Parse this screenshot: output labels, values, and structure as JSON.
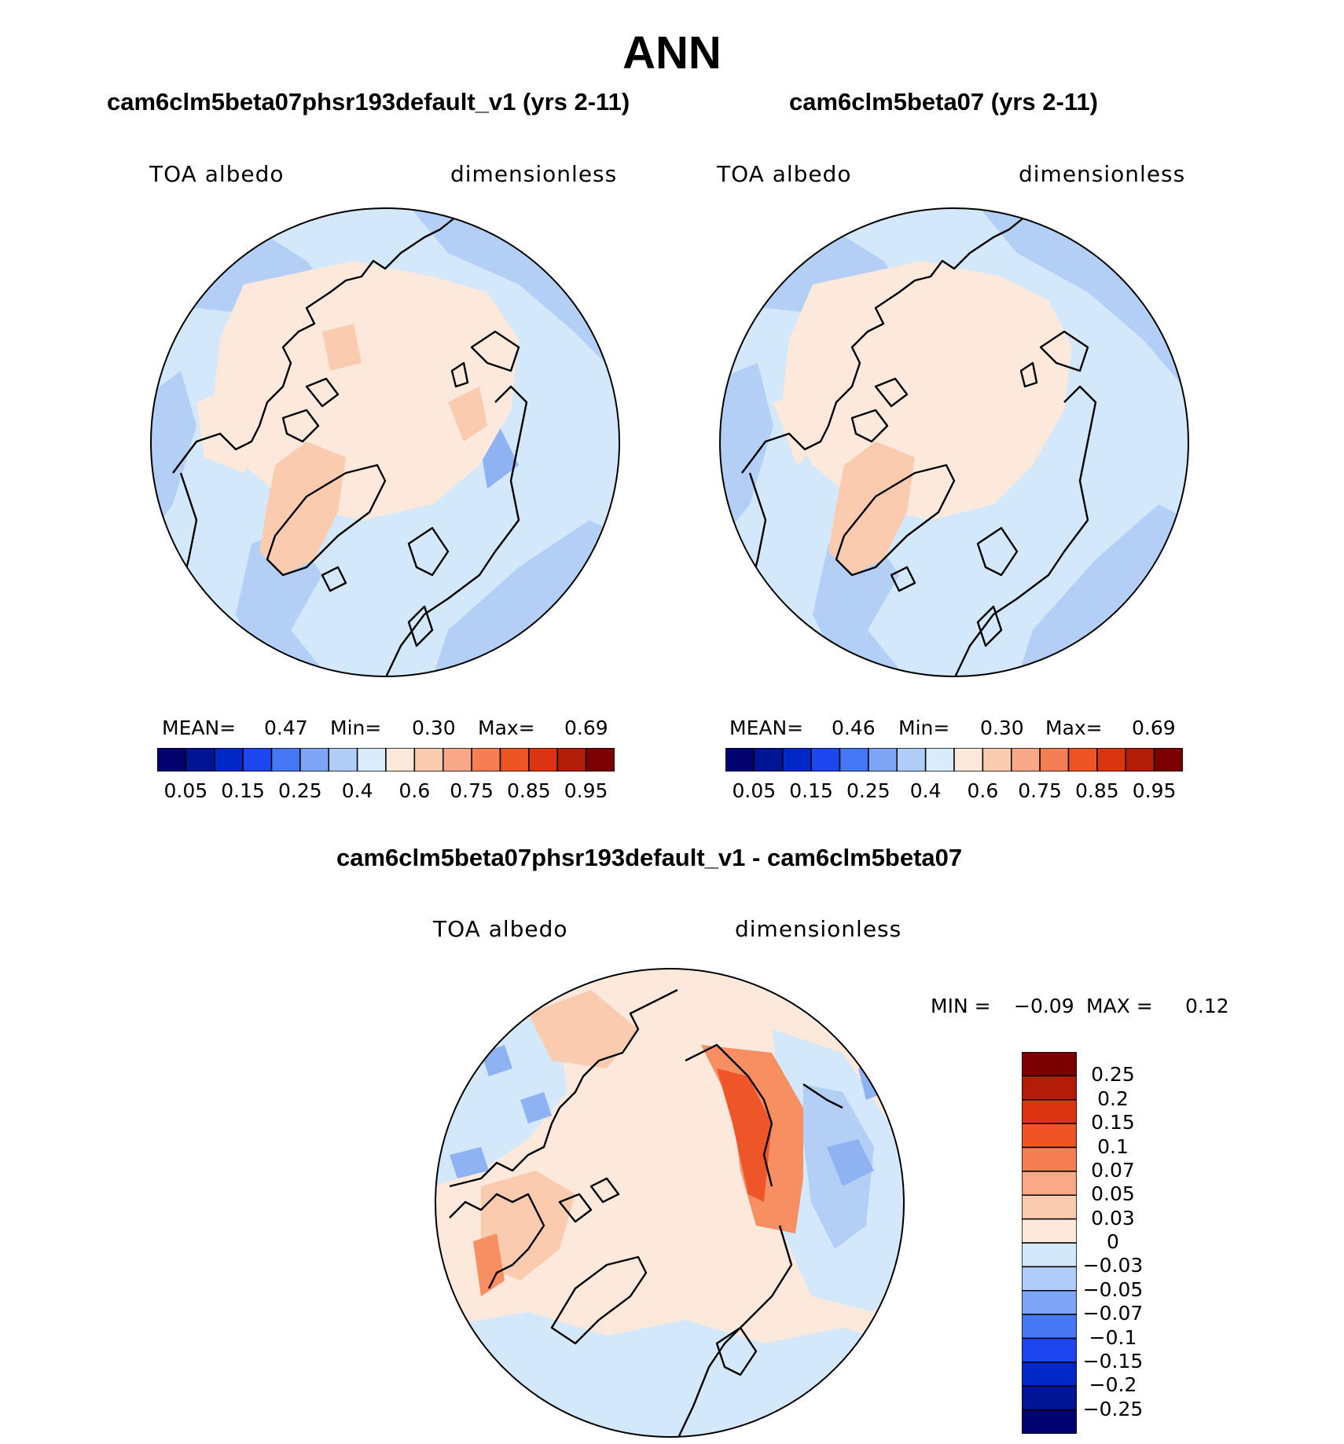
{
  "page_title": "ANN",
  "colors": {
    "pale_blue": "#d4e8fb",
    "light_blue": "#b3cff6",
    "mid_blue": "#8fb2f3",
    "pale_orange": "#fde9dc",
    "light_orange": "#fbcbb0",
    "mid_orange": "#f78f63",
    "red": "#ee5528",
    "coast": "#000000"
  },
  "panels": [
    {
      "title": "cam6clm5beta07phsr193default_v1 (yrs 2-11)",
      "variable": "TOA albedo",
      "units": "dimensionless",
      "stats": {
        "mean_label": "MEAN=",
        "mean": "0.47",
        "min_label": "Min=",
        "min": "0.30",
        "max_label": "Max=",
        "max": "0.69"
      }
    },
    {
      "title": "cam6clm5beta07 (yrs 2-11)",
      "variable": "TOA albedo",
      "units": "dimensionless",
      "stats": {
        "mean_label": "MEAN=",
        "mean": "0.46",
        "min_label": "Min=",
        "min": "0.30",
        "max_label": "Max=",
        "max": "0.69"
      }
    }
  ],
  "colorbar_main": {
    "colors": [
      "#00006e",
      "#001496",
      "#0028c8",
      "#1e46f0",
      "#4678f5",
      "#7ea4f6",
      "#b0ccf8",
      "#d8ecfc",
      "#fde9dc",
      "#fbcbb0",
      "#f9a888",
      "#f57e54",
      "#ef5424",
      "#dc3410",
      "#b41c0a",
      "#7d0000"
    ],
    "tick_labels": [
      "0.05",
      "0.15",
      "0.25",
      "0.4",
      "0.6",
      "0.75",
      "0.85",
      "0.95"
    ]
  },
  "difference": {
    "title": "cam6clm5beta07phsr193default_v1 - cam6clm5beta07",
    "variable": "TOA albedo",
    "units": "dimensionless",
    "min_label": "MIN =",
    "min": "−0.09",
    "max_label": "MAX =",
    "max": "0.12",
    "colorbar": {
      "colors": [
        "#7d0000",
        "#b41c0a",
        "#dc3410",
        "#ef5424",
        "#f57e54",
        "#f9a888",
        "#fbcbb0",
        "#fde9dc",
        "#d4e8fb",
        "#b0ccf8",
        "#7ea4f6",
        "#4678f5",
        "#1e46f0",
        "#0028c8",
        "#001496",
        "#00006e"
      ],
      "tick_labels": [
        "0.25",
        "0.2",
        "0.15",
        "0.1",
        "0.07",
        "0.05",
        "0.03",
        "0",
        "−0.03",
        "−0.05",
        "−0.07",
        "−0.1",
        "−0.15",
        "−0.2",
        "−0.25"
      ]
    }
  }
}
